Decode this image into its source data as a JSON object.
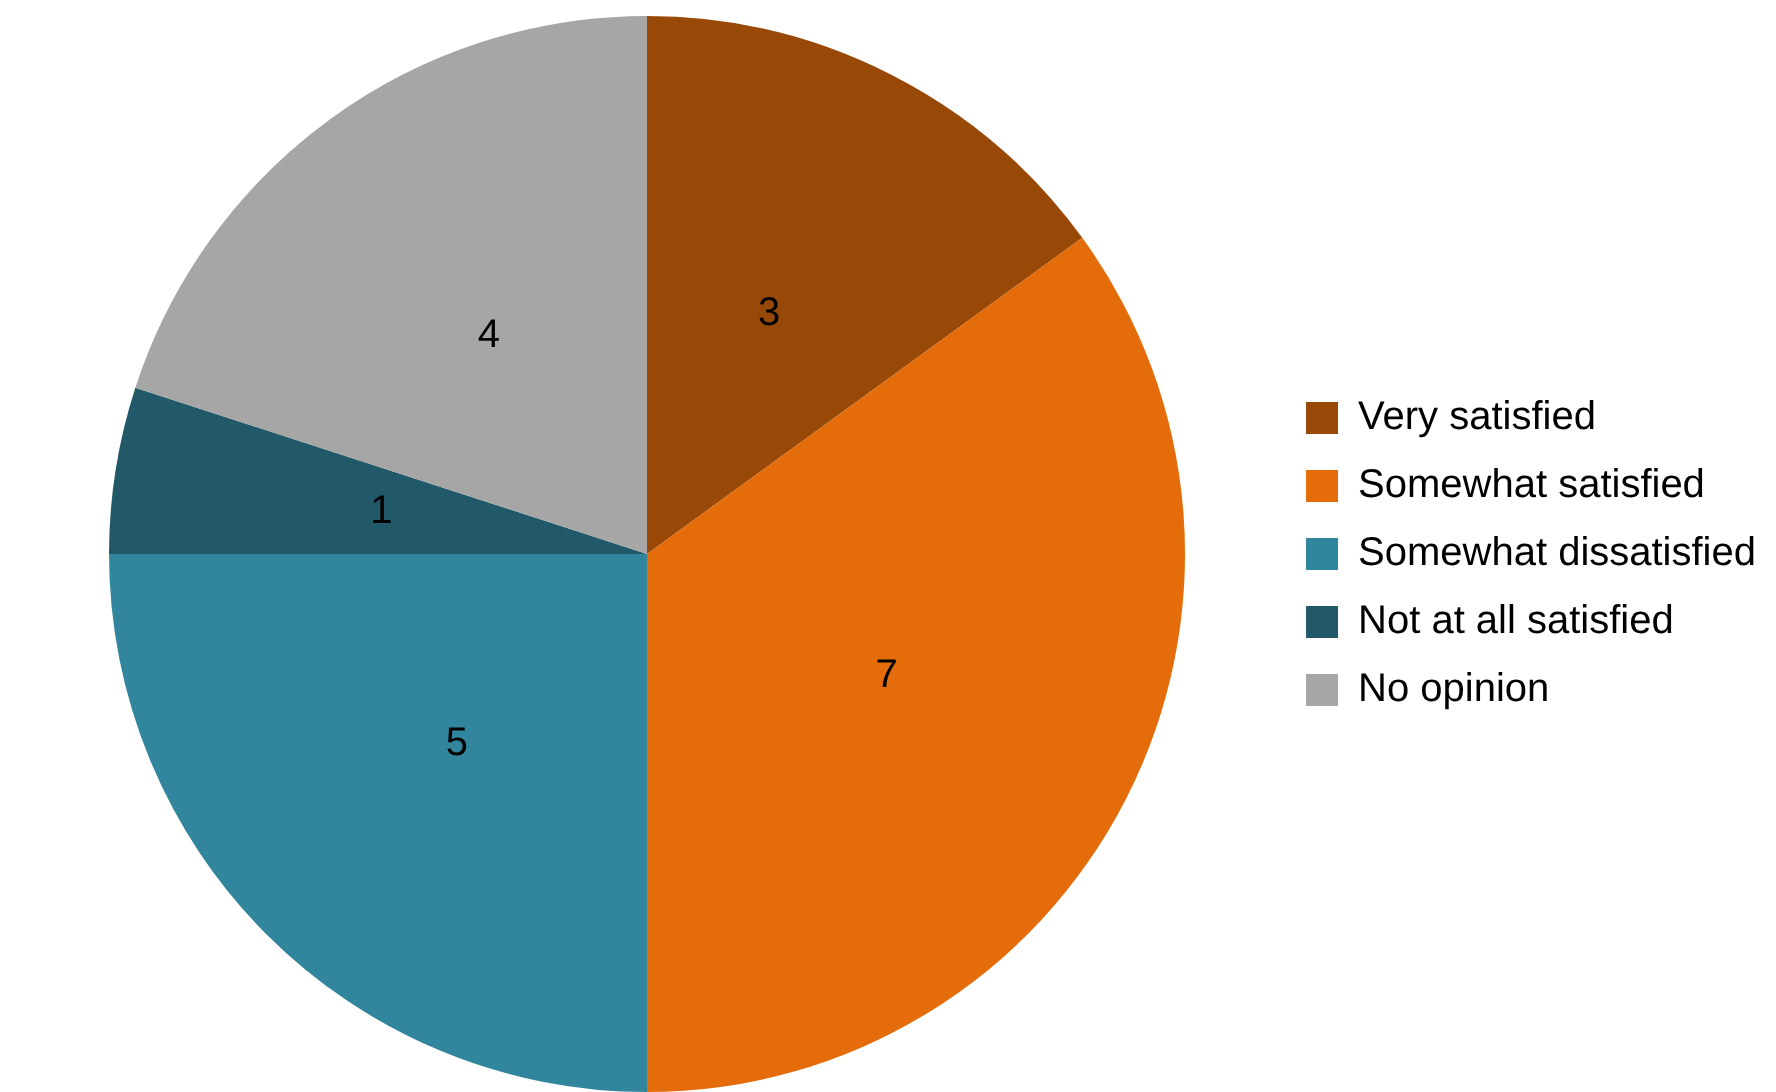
{
  "chart_data": {
    "type": "pie",
    "categories": [
      "Very satisfied",
      "Somewhat satisfied",
      "Somewhat dissatisfied",
      "Not at all satisfied",
      "No opinion"
    ],
    "values": [
      3,
      7,
      5,
      1,
      4
    ],
    "colors": [
      "#984807",
      "#e46c0a",
      "#31859c",
      "#215968",
      "#a6a6a6"
    ],
    "data_labels": true,
    "legend": "right"
  }
}
